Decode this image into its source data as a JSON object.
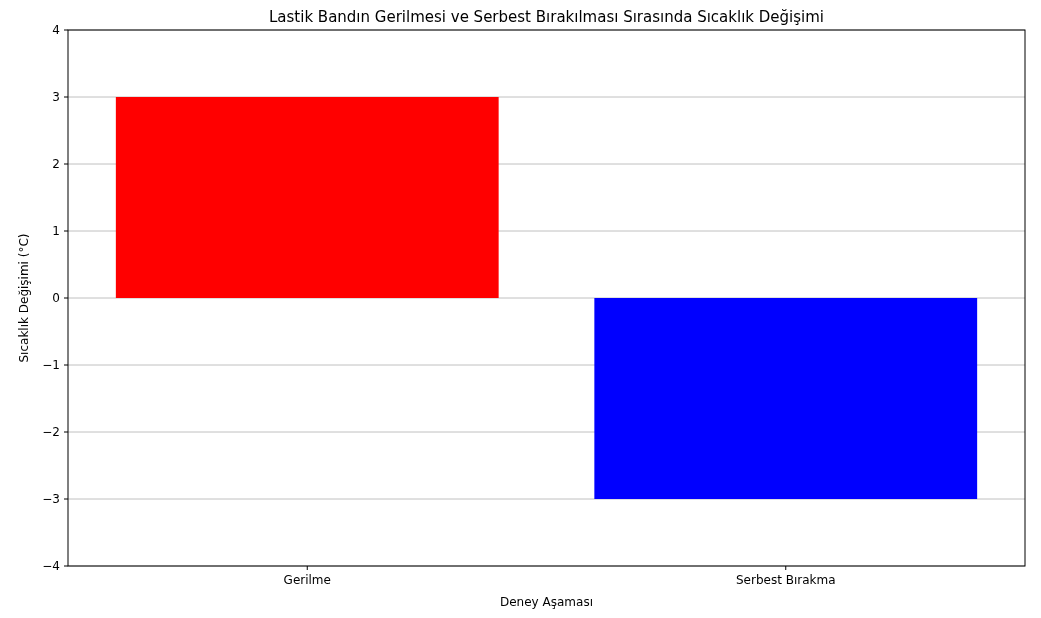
{
  "chart_data": {
    "type": "bar",
    "title": "Lastik Bandın Gerilmesi ve Serbest Bırakılması Sırasında Sıcaklık Değişimi",
    "xlabel": "Deney Aşaması",
    "ylabel": "Sıcaklık Değişimi (°C)",
    "categories": [
      "Gerilme",
      "Serbest Bırakma"
    ],
    "values": [
      3,
      -3
    ],
    "colors": [
      "#ff0000",
      "#0000ff"
    ],
    "ylim": [
      -4,
      4
    ],
    "yticks": [
      {
        "value": -4,
        "label": "−4"
      },
      {
        "value": -3,
        "label": "−3"
      },
      {
        "value": -2,
        "label": "−2"
      },
      {
        "value": -1,
        "label": "−1"
      },
      0,
      1,
      2,
      3,
      4
    ],
    "grid": "y"
  }
}
